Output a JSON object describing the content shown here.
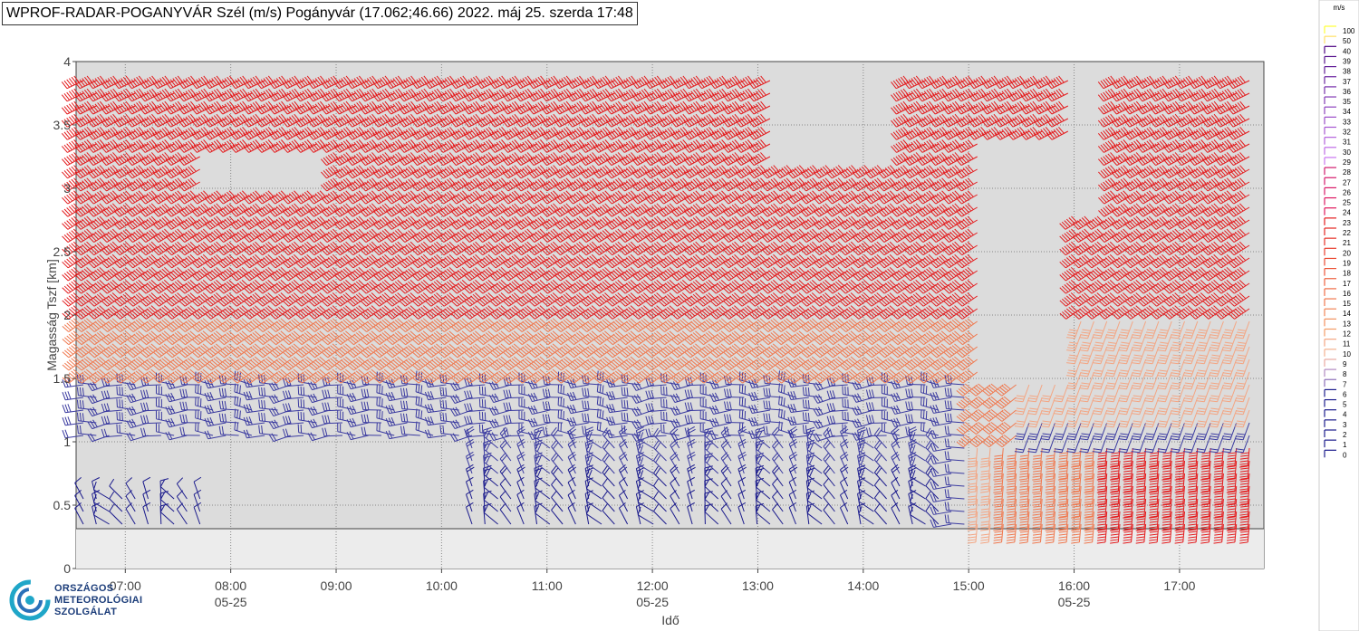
{
  "title": "WPROF-RADAR-POGANYVÁR Szél (m/s) Pogányvár (17.062;46.66) 2022. máj 25. szerda 17:48",
  "logo": {
    "lines": [
      "ORSZÁGOS",
      "METEOROLÓGIAI",
      "SZOLGÁLAT"
    ]
  },
  "colors": {
    "low": "#1a1a8c",
    "high": "#e41a1c",
    "mid": "#f4a582",
    "purple": "#7b3fa0"
  },
  "chart_data": {
    "type": "wind-barb",
    "xlabel": "Idő",
    "ylabel": "Magasság Tszf [km]",
    "x_ticks": [
      "07:00",
      "08:00",
      "09:00",
      "10:00",
      "11:00",
      "12:00",
      "13:00",
      "14:00",
      "15:00",
      "16:00",
      "17:00"
    ],
    "x_date_labels": [
      {
        "at": "08:00",
        "text": "05-25"
      },
      {
        "at": "12:00",
        "text": "05-25"
      },
      {
        "at": "16:00",
        "text": "05-25"
      }
    ],
    "y_ticks": [
      "0",
      "0.5",
      "1",
      "1.5",
      "2",
      "2.5",
      "3",
      "3.5",
      "4"
    ],
    "xlim": [
      "06:32",
      "17:48"
    ],
    "ylim": [
      0,
      4
    ],
    "ground_level_km": 0.3,
    "grid": true,
    "legend": {
      "position": "right",
      "unit": "m/s",
      "entries": [
        "100",
        "50",
        "40",
        "39",
        "38",
        "37",
        "36",
        "35",
        "34",
        "33",
        "32",
        "31",
        "30",
        "29",
        "28",
        "27",
        "26",
        "25",
        "24",
        "23",
        "22",
        "21",
        "20",
        "19",
        "18",
        "17",
        "16",
        "15",
        "14",
        "13",
        "12",
        "11",
        "10",
        "9",
        "8",
        "7",
        "6",
        "5",
        "4",
        "3",
        "2",
        "1",
        "0"
      ],
      "colors": [
        "#ffff33",
        "#ffe066",
        "#4b0082",
        "#56108c",
        "#601a96",
        "#6b24a0",
        "#762eaa",
        "#8238b4",
        "#8d42be",
        "#9a4cc8",
        "#a656d2",
        "#b260dc",
        "#be6ae6",
        "#c874f0",
        "#d0196c",
        "#d4186b",
        "#d81766",
        "#dc1660",
        "#e0155a",
        "#e41a1c",
        "#e42420",
        "#e63026",
        "#e83c2c",
        "#ea4832",
        "#ec5438",
        "#ee603e",
        "#ef6c46",
        "#f0784e",
        "#f18456",
        "#f2905e",
        "#f39c66",
        "#f4a582",
        "#f4b08e",
        "#e8a8a0",
        "#b088c0",
        "#8a6cb8",
        "#1a1a8c",
        "#1a1a8c",
        "#1a1a8c",
        "#1a1a8c",
        "#1a1a8c",
        "#1a1a8c",
        "#1a1a8c"
      ]
    }
  }
}
